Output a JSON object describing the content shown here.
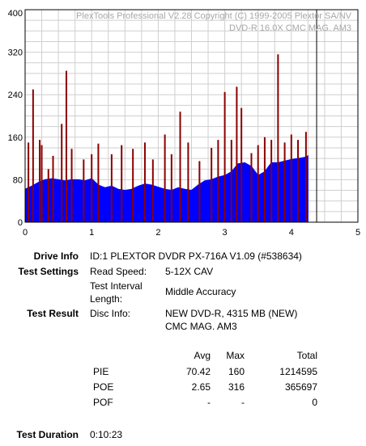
{
  "chart_data": {
    "type": "bar",
    "title": "PlexTools Professional V2.28 Copyright (C) 1999-2005 Plextor SA/NV",
    "subtitle": "DVD-R    16.0X    CMC MAG. AM3",
    "xlim": [
      0,
      5
    ],
    "ylim": [
      0,
      400
    ],
    "x_ticks": [
      0,
      1,
      2,
      3,
      4,
      5
    ],
    "y_ticks": [
      0,
      80,
      160,
      240,
      320,
      400
    ],
    "x_tick_labels": [
      "0",
      "1",
      "2",
      "3",
      "4",
      "5"
    ],
    "y_tick_labels": [
      "0",
      "80",
      "160",
      "240",
      "320",
      "400"
    ],
    "grid": true,
    "marker_x": 4.38,
    "series": [
      {
        "name": "PIE",
        "color": "#0000ff",
        "x": [
          0.0,
          0.1,
          0.2,
          0.3,
          0.4,
          0.5,
          0.6,
          0.7,
          0.8,
          0.9,
          1.0,
          1.1,
          1.2,
          1.3,
          1.4,
          1.5,
          1.6,
          1.7,
          1.8,
          1.9,
          2.0,
          2.1,
          2.2,
          2.3,
          2.4,
          2.5,
          2.6,
          2.7,
          2.8,
          2.9,
          3.0,
          3.1,
          3.2,
          3.3,
          3.4,
          3.5,
          3.6,
          3.7,
          3.8,
          3.9,
          4.0,
          4.1,
          4.2,
          4.25
        ],
        "y": [
          62,
          68,
          75,
          80,
          82,
          80,
          78,
          80,
          80,
          78,
          82,
          70,
          65,
          68,
          62,
          60,
          62,
          68,
          72,
          70,
          66,
          62,
          60,
          65,
          62,
          60,
          70,
          78,
          80,
          85,
          88,
          95,
          110,
          112,
          105,
          88,
          95,
          112,
          112,
          115,
          118,
          120,
          122,
          125
        ]
      },
      {
        "name": "POE",
        "color": "#8b0000",
        "x": [
          0.05,
          0.12,
          0.22,
          0.25,
          0.35,
          0.42,
          0.55,
          0.62,
          0.7,
          0.88,
          1.0,
          1.1,
          1.3,
          1.45,
          1.62,
          1.8,
          1.92,
          2.1,
          2.2,
          2.33,
          2.45,
          2.62,
          2.8,
          2.9,
          3.0,
          3.1,
          3.18,
          3.25,
          3.4,
          3.5,
          3.6,
          3.7,
          3.8,
          3.9,
          4.0,
          4.1,
          4.22
        ],
        "y": [
          150,
          250,
          155,
          145,
          100,
          125,
          185,
          285,
          138,
          118,
          128,
          148,
          128,
          145,
          138,
          150,
          118,
          165,
          128,
          208,
          150,
          115,
          140,
          155,
          245,
          155,
          255,
          215,
          130,
          145,
          160,
          155,
          316,
          150,
          165,
          155,
          170
        ]
      }
    ]
  },
  "info": {
    "drive_label": "Drive Info",
    "drive_value": "ID:1 PLEXTOR DVDR PX-716A V1.09 (#538634)",
    "settings_label": "Test Settings",
    "read_speed_label": "Read Speed:",
    "read_speed_value": "5-12X CAV",
    "interval_label_1": "Test Interval",
    "interval_label_2": "Length:",
    "interval_value": "Middle Accuracy",
    "result_label": "Test Result",
    "disc_info_label": "Disc Info:",
    "disc_info_value_1": "NEW DVD-R, 4315 MB (NEW)",
    "disc_info_value_2": "CMC MAG. AM3",
    "duration_label": "Test Duration",
    "duration_value": "0:10:23"
  },
  "stats": {
    "headers": {
      "avg": "Avg",
      "max": "Max",
      "total": "Total"
    },
    "rows": [
      {
        "name": "PIE",
        "avg": "70.42",
        "max": "160",
        "total": "1214595"
      },
      {
        "name": "POE",
        "avg": "2.65",
        "max": "316",
        "total": "365697"
      },
      {
        "name": "POF",
        "avg": "-",
        "max": "-",
        "total": "0"
      }
    ]
  }
}
